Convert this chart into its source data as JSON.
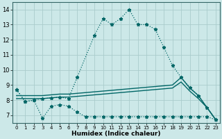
{
  "xlabel": "Humidex (Indice chaleur)",
  "bg_color": "#cce8e8",
  "grid_color": "#aacccc",
  "line_color": "#006666",
  "xlim": [
    -0.5,
    23.5
  ],
  "ylim": [
    6.5,
    14.5
  ],
  "xticks": [
    0,
    1,
    2,
    3,
    4,
    5,
    6,
    7,
    8,
    9,
    10,
    11,
    12,
    13,
    14,
    15,
    16,
    17,
    18,
    19,
    20,
    21,
    22,
    23
  ],
  "yticks": [
    7,
    8,
    9,
    10,
    11,
    12,
    13,
    14
  ],
  "s1_x": [
    0,
    1,
    2,
    3,
    4,
    5,
    6,
    7,
    9,
    10,
    11,
    12,
    13,
    14,
    15,
    16,
    17,
    18,
    19,
    20,
    21,
    22,
    23
  ],
  "s1_y": [
    8.7,
    7.9,
    8.0,
    8.1,
    8.15,
    8.2,
    8.1,
    9.5,
    12.3,
    13.4,
    13.0,
    13.4,
    14.0,
    13.0,
    13.0,
    12.7,
    11.5,
    10.3,
    9.5,
    8.85,
    8.3,
    7.5,
    6.7
  ],
  "s2_x": [
    0,
    1,
    2,
    3,
    4,
    5,
    6,
    7,
    8,
    9,
    10,
    11,
    12,
    13,
    14,
    15,
    16,
    17,
    18,
    19,
    20,
    21,
    22,
    23
  ],
  "s2_y": [
    8.7,
    7.9,
    8.0,
    6.8,
    7.6,
    7.7,
    7.6,
    7.2,
    6.9,
    6.9,
    6.9,
    6.9,
    6.9,
    6.9,
    6.9,
    6.9,
    6.9,
    6.9,
    6.9,
    6.9,
    6.9,
    6.9,
    6.9,
    6.7
  ],
  "s3_x": [
    0,
    1,
    2,
    3,
    4,
    5,
    6,
    7,
    8,
    9,
    10,
    11,
    12,
    13,
    14,
    15,
    16,
    17,
    18,
    19,
    20,
    21,
    22,
    23
  ],
  "s3_y": [
    8.3,
    8.3,
    8.3,
    8.3,
    8.35,
    8.4,
    8.4,
    8.45,
    8.5,
    8.55,
    8.6,
    8.65,
    8.7,
    8.75,
    8.8,
    8.85,
    8.9,
    8.95,
    9.0,
    9.5,
    8.8,
    8.3,
    7.5,
    6.7
  ],
  "s4_x": [
    0,
    1,
    2,
    3,
    4,
    5,
    6,
    7,
    8,
    9,
    10,
    11,
    12,
    13,
    14,
    15,
    16,
    17,
    18,
    19,
    20,
    21,
    22,
    23
  ],
  "s4_y": [
    8.1,
    8.1,
    8.1,
    8.1,
    8.15,
    8.2,
    8.2,
    8.25,
    8.3,
    8.35,
    8.4,
    8.45,
    8.5,
    8.55,
    8.6,
    8.65,
    8.7,
    8.75,
    8.8,
    9.2,
    8.6,
    8.1,
    7.5,
    6.7
  ]
}
